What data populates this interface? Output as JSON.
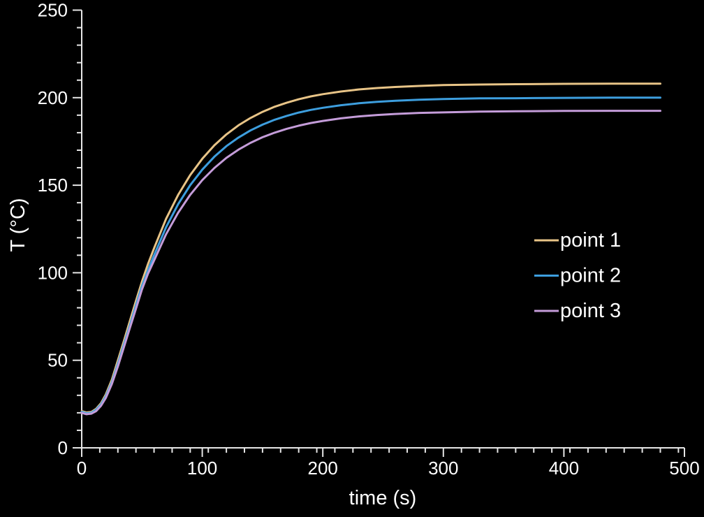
{
  "chart_data": {
    "type": "line",
    "title": "",
    "xlabel": "time (s)",
    "ylabel": "T (°C)",
    "xlim": [
      0,
      500
    ],
    "ylim": [
      0,
      250
    ],
    "x_major_unit": 100,
    "x_minor_unit": 15,
    "y_major_unit": 50,
    "y_minor_unit": 10,
    "grid": false,
    "legend_position": "right-middle",
    "colors": {
      "background": "#000000",
      "axis": "#e6e6e6",
      "text": "#ffffff"
    },
    "x": [
      0,
      4,
      8,
      12,
      16,
      20,
      25,
      30,
      35,
      40,
      45,
      50,
      55,
      60,
      70,
      80,
      90,
      100,
      110,
      120,
      130,
      140,
      150,
      160,
      170,
      180,
      190,
      200,
      215,
      230,
      245,
      260,
      280,
      300,
      330,
      360,
      400,
      440,
      480
    ],
    "series": [
      {
        "name": "point 1",
        "color": "#e8c487",
        "values": [
          21,
          20.2,
          20.5,
          22.3,
          25.5,
          30.5,
          39,
          50,
          61,
          72.5,
          84,
          95,
          105,
          114,
          130.8,
          144.5,
          155.8,
          165.1,
          172.8,
          179,
          184.2,
          188.4,
          191.9,
          194.8,
          197.1,
          199.1,
          200.7,
          202,
          203.5,
          204.7,
          205.5,
          206.1,
          206.7,
          207.2,
          207.5,
          207.7,
          207.9,
          208,
          208
        ]
      },
      {
        "name": "point 2",
        "color": "#3d9ede",
        "values": [
          20.5,
          19.7,
          20,
          21.8,
          24.8,
          29.5,
          37.5,
          48,
          59,
          70,
          81.5,
          92.5,
          101.5,
          110,
          126,
          139.2,
          150,
          158.9,
          166.3,
          172.3,
          177.2,
          181.3,
          184.6,
          187.4,
          189.6,
          191.5,
          193,
          194.2,
          195.7,
          196.8,
          197.6,
          198.2,
          198.8,
          199.2,
          199.6,
          199.7,
          199.9,
          200,
          200
        ]
      },
      {
        "name": "point 3",
        "color": "#c49cd9",
        "values": [
          20,
          19.2,
          19.5,
          21,
          24,
          28.5,
          36.5,
          46.5,
          57.5,
          68.5,
          79.5,
          90.5,
          99.5,
          107,
          122,
          134.3,
          144.5,
          152.9,
          159.8,
          165.6,
          170.3,
          174.2,
          177.4,
          180,
          182.2,
          184,
          185.5,
          186.7,
          188.2,
          189.3,
          190.1,
          190.7,
          191.3,
          191.6,
          192,
          192.2,
          192.4,
          192.5,
          192.5
        ]
      }
    ]
  }
}
